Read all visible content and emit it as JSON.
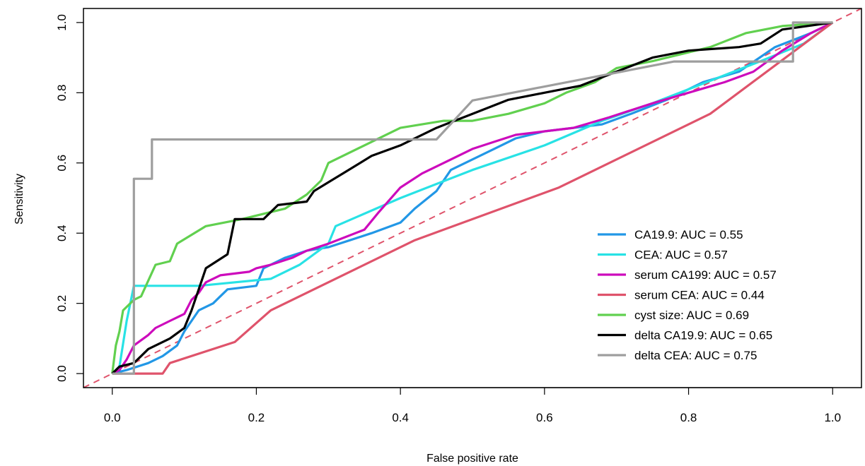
{
  "chart_data": {
    "type": "line",
    "title": "",
    "xlabel": "False positive rate",
    "ylabel": "Sensitivity",
    "xlim": [
      -0.04,
      1.04
    ],
    "ylim": [
      -0.04,
      1.04
    ],
    "xticks": [
      0.0,
      0.2,
      0.4,
      0.6,
      0.8,
      1.0
    ],
    "yticks": [
      0.0,
      0.2,
      0.4,
      0.6,
      0.8,
      1.0
    ],
    "xtick_labels": [
      "0.0",
      "0.2",
      "0.4",
      "0.6",
      "0.8",
      "1.0"
    ],
    "ytick_labels": [
      "0.0",
      "0.2",
      "0.4",
      "0.6",
      "0.8",
      "1.0"
    ],
    "grid": false,
    "legend_position": "bottom-right",
    "reference_line": {
      "style": "dashed",
      "color": "#df536b",
      "points": [
        [
          -0.04,
          -0.04
        ],
        [
          1.04,
          1.04
        ]
      ]
    },
    "series": [
      {
        "name": "CA19.9: AUC = 0.55",
        "color": "#2297e6",
        "points": [
          [
            0,
            0
          ],
          [
            0.02,
            0.01
          ],
          [
            0.05,
            0.03
          ],
          [
            0.07,
            0.05
          ],
          [
            0.09,
            0.08
          ],
          [
            0.1,
            0.12
          ],
          [
            0.11,
            0.15
          ],
          [
            0.12,
            0.18
          ],
          [
            0.14,
            0.2
          ],
          [
            0.15,
            0.22
          ],
          [
            0.16,
            0.24
          ],
          [
            0.2,
            0.25
          ],
          [
            0.21,
            0.3
          ],
          [
            0.24,
            0.33
          ],
          [
            0.27,
            0.35
          ],
          [
            0.3,
            0.36
          ],
          [
            0.33,
            0.38
          ],
          [
            0.36,
            0.4
          ],
          [
            0.4,
            0.43
          ],
          [
            0.42,
            0.47
          ],
          [
            0.45,
            0.52
          ],
          [
            0.47,
            0.58
          ],
          [
            0.5,
            0.61
          ],
          [
            0.53,
            0.64
          ],
          [
            0.56,
            0.67
          ],
          [
            0.6,
            0.69
          ],
          [
            0.64,
            0.7
          ],
          [
            0.68,
            0.71
          ],
          [
            0.72,
            0.74
          ],
          [
            0.77,
            0.78
          ],
          [
            0.82,
            0.83
          ],
          [
            0.87,
            0.86
          ],
          [
            0.92,
            0.93
          ],
          [
            0.97,
            0.97
          ],
          [
            1.0,
            1.0
          ]
        ]
      },
      {
        "name": "CEA: AUC = 0.57",
        "color": "#28e2e5",
        "points": [
          [
            0,
            0
          ],
          [
            0.01,
            0.02
          ],
          [
            0.02,
            0.15
          ],
          [
            0.03,
            0.25
          ],
          [
            0.12,
            0.25
          ],
          [
            0.22,
            0.27
          ],
          [
            0.26,
            0.31
          ],
          [
            0.3,
            0.37
          ],
          [
            0.31,
            0.42
          ],
          [
            0.4,
            0.5
          ],
          [
            0.5,
            0.58
          ],
          [
            0.6,
            0.65
          ],
          [
            0.68,
            0.72
          ],
          [
            0.75,
            0.77
          ],
          [
            0.8,
            0.81
          ],
          [
            0.85,
            0.85
          ],
          [
            0.9,
            0.89
          ],
          [
            0.96,
            0.94
          ],
          [
            1.0,
            1.0
          ]
        ]
      },
      {
        "name": "serum CA199: AUC = 0.57",
        "color": "#cd0bbc",
        "points": [
          [
            0,
            0
          ],
          [
            0.01,
            0.01
          ],
          [
            0.02,
            0.04
          ],
          [
            0.03,
            0.08
          ],
          [
            0.05,
            0.11
          ],
          [
            0.06,
            0.13
          ],
          [
            0.08,
            0.15
          ],
          [
            0.1,
            0.17
          ],
          [
            0.11,
            0.21
          ],
          [
            0.12,
            0.23
          ],
          [
            0.13,
            0.26
          ],
          [
            0.15,
            0.28
          ],
          [
            0.19,
            0.29
          ],
          [
            0.2,
            0.3
          ],
          [
            0.22,
            0.31
          ],
          [
            0.25,
            0.33
          ],
          [
            0.27,
            0.35
          ],
          [
            0.3,
            0.37
          ],
          [
            0.35,
            0.41
          ],
          [
            0.37,
            0.46
          ],
          [
            0.4,
            0.53
          ],
          [
            0.43,
            0.57
          ],
          [
            0.46,
            0.6
          ],
          [
            0.5,
            0.64
          ],
          [
            0.53,
            0.66
          ],
          [
            0.56,
            0.68
          ],
          [
            0.6,
            0.69
          ],
          [
            0.64,
            0.7
          ],
          [
            0.69,
            0.73
          ],
          [
            0.75,
            0.77
          ],
          [
            0.8,
            0.8
          ],
          [
            0.85,
            0.83
          ],
          [
            0.89,
            0.86
          ],
          [
            0.93,
            0.92
          ],
          [
            0.97,
            0.97
          ],
          [
            1.0,
            1.0
          ]
        ]
      },
      {
        "name": "serum CEA: AUC = 0.44",
        "color": "#df536b",
        "points": [
          [
            0,
            0
          ],
          [
            0.07,
            0
          ],
          [
            0.08,
            0.03
          ],
          [
            0.17,
            0.09
          ],
          [
            0.22,
            0.18
          ],
          [
            0.42,
            0.38
          ],
          [
            0.62,
            0.53
          ],
          [
            0.83,
            0.74
          ],
          [
            1.0,
            1.0
          ]
        ]
      },
      {
        "name": "cyst size: AUC = 0.69",
        "color": "#61d04f",
        "points": [
          [
            0,
            0
          ],
          [
            0.005,
            0.08
          ],
          [
            0.01,
            0.12
          ],
          [
            0.015,
            0.18
          ],
          [
            0.03,
            0.21
          ],
          [
            0.04,
            0.22
          ],
          [
            0.06,
            0.31
          ],
          [
            0.08,
            0.32
          ],
          [
            0.09,
            0.37
          ],
          [
            0.13,
            0.42
          ],
          [
            0.18,
            0.44
          ],
          [
            0.24,
            0.47
          ],
          [
            0.27,
            0.51
          ],
          [
            0.29,
            0.55
          ],
          [
            0.3,
            0.6
          ],
          [
            0.35,
            0.65
          ],
          [
            0.4,
            0.7
          ],
          [
            0.46,
            0.72
          ],
          [
            0.5,
            0.72
          ],
          [
            0.55,
            0.74
          ],
          [
            0.6,
            0.77
          ],
          [
            0.63,
            0.8
          ],
          [
            0.67,
            0.83
          ],
          [
            0.7,
            0.87
          ],
          [
            0.75,
            0.89
          ],
          [
            0.83,
            0.93
          ],
          [
            0.88,
            0.97
          ],
          [
            0.93,
            0.99
          ],
          [
            1.0,
            1.0
          ]
        ]
      },
      {
        "name": "delta CA19.9: AUC = 0.65",
        "color": "#000000",
        "points": [
          [
            0,
            0
          ],
          [
            0.01,
            0.02
          ],
          [
            0.03,
            0.03
          ],
          [
            0.04,
            0.05
          ],
          [
            0.05,
            0.07
          ],
          [
            0.08,
            0.1
          ],
          [
            0.1,
            0.13
          ],
          [
            0.11,
            0.18
          ],
          [
            0.12,
            0.24
          ],
          [
            0.13,
            0.3
          ],
          [
            0.16,
            0.34
          ],
          [
            0.17,
            0.44
          ],
          [
            0.21,
            0.44
          ],
          [
            0.23,
            0.48
          ],
          [
            0.27,
            0.49
          ],
          [
            0.28,
            0.52
          ],
          [
            0.32,
            0.57
          ],
          [
            0.36,
            0.62
          ],
          [
            0.4,
            0.65
          ],
          [
            0.45,
            0.7
          ],
          [
            0.5,
            0.74
          ],
          [
            0.55,
            0.78
          ],
          [
            0.6,
            0.8
          ],
          [
            0.65,
            0.82
          ],
          [
            0.7,
            0.86
          ],
          [
            0.75,
            0.9
          ],
          [
            0.8,
            0.92
          ],
          [
            0.87,
            0.93
          ],
          [
            0.9,
            0.94
          ],
          [
            0.93,
            0.98
          ],
          [
            1.0,
            1.0
          ]
        ]
      },
      {
        "name": "delta CEA: AUC = 0.75",
        "color": "#9e9e9e",
        "points": [
          [
            0,
            0
          ],
          [
            0.03,
            0
          ],
          [
            0.03,
            0.555
          ],
          [
            0.055,
            0.555
          ],
          [
            0.055,
            0.667
          ],
          [
            0.45,
            0.667
          ],
          [
            0.5,
            0.778
          ],
          [
            0.78,
            0.889
          ],
          [
            0.945,
            0.889
          ],
          [
            0.945,
            1.0
          ],
          [
            1.0,
            1.0
          ]
        ]
      }
    ]
  }
}
